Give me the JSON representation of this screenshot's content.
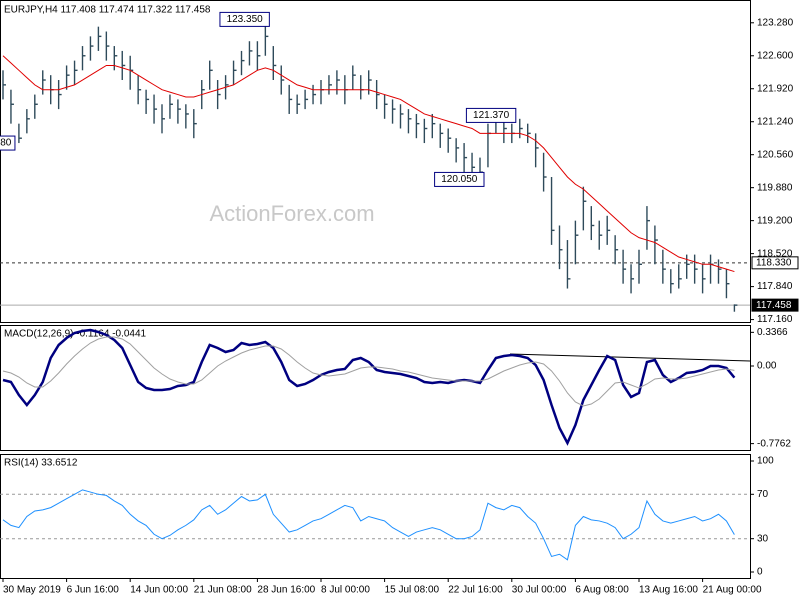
{
  "chart_data": [
    {
      "type": "ohlc",
      "title": "EURJPY,H4  117.408 117.474 117.322 117.458",
      "color": "#2e4a5a",
      "high": [
        122.3,
        121.9,
        121.2,
        121.5,
        121.8,
        122.3,
        122.2,
        122.1,
        122.4,
        122.5,
        122.8,
        123.0,
        123.2,
        123.1,
        122.8,
        122.7,
        122.6,
        122.2,
        121.9,
        121.8,
        121.6,
        121.8,
        121.7,
        121.6,
        121.5,
        122.1,
        122.5,
        122.1,
        122.2,
        122.5,
        122.7,
        122.9,
        122.9,
        123.35,
        122.8,
        122.4,
        122.0,
        121.8,
        121.9,
        122.0,
        122.1,
        122.2,
        122.3,
        122.2,
        122.4,
        122.2,
        122.3,
        122.1,
        121.8,
        121.7,
        121.6,
        121.5,
        121.4,
        121.3,
        121.4,
        121.2,
        121.1,
        120.9,
        120.8,
        120.6,
        120.5,
        121.2,
        121.37,
        121.3,
        121.2,
        121.3,
        121.2,
        121.0,
        120.6,
        120.1,
        119.1,
        118.8,
        119.2,
        119.9,
        119.5,
        119.2,
        119.3,
        118.9,
        118.6,
        118.3,
        118.6,
        119.5,
        119.1,
        118.6,
        118.2,
        118.3,
        118.5,
        118.5,
        118.3,
        118.5,
        118.4,
        118.2,
        117.474
      ],
      "low": [
        121.7,
        121.2,
        120.8,
        121.0,
        121.3,
        121.8,
        121.6,
        121.5,
        121.9,
        122.0,
        122.3,
        122.5,
        122.7,
        122.5,
        122.3,
        122.1,
        121.9,
        121.6,
        121.4,
        121.2,
        121.0,
        121.3,
        121.2,
        121.1,
        120.9,
        121.5,
        121.9,
        121.5,
        121.7,
        122.0,
        122.2,
        122.4,
        122.3,
        122.6,
        122.1,
        121.8,
        121.4,
        121.4,
        121.5,
        121.6,
        121.6,
        121.8,
        121.8,
        121.6,
        121.9,
        121.7,
        121.8,
        121.5,
        121.3,
        121.2,
        121.1,
        121.0,
        120.9,
        120.8,
        120.9,
        120.7,
        120.6,
        120.4,
        120.2,
        120.1,
        120.05,
        120.3,
        121.0,
        120.8,
        120.8,
        120.9,
        120.8,
        120.3,
        119.8,
        118.7,
        118.2,
        117.8,
        118.3,
        119.0,
        118.8,
        118.6,
        118.7,
        118.3,
        117.9,
        117.7,
        117.9,
        118.6,
        118.3,
        117.9,
        117.7,
        117.8,
        118.0,
        117.9,
        117.7,
        117.9,
        117.9,
        117.6,
        117.322
      ],
      "close": [
        122.0,
        121.6,
        120.9,
        121.3,
        121.6,
        122.1,
        121.9,
        121.8,
        122.2,
        122.3,
        122.6,
        122.8,
        123.0,
        122.8,
        122.6,
        122.4,
        122.3,
        121.9,
        121.7,
        121.5,
        121.3,
        121.6,
        121.5,
        121.4,
        121.2,
        121.9,
        122.3,
        121.8,
        122.0,
        122.3,
        122.5,
        122.7,
        122.6,
        123.0,
        122.4,
        122.1,
        121.7,
        121.6,
        121.7,
        121.8,
        121.9,
        122.0,
        122.1,
        121.9,
        122.2,
        121.9,
        122.1,
        121.8,
        121.6,
        121.5,
        121.4,
        121.3,
        121.2,
        121.1,
        121.2,
        121.0,
        120.9,
        120.7,
        120.5,
        120.3,
        120.2,
        121.0,
        121.3,
        121.1,
        121.0,
        121.1,
        121.0,
        120.7,
        120.1,
        119.0,
        118.6,
        118.0,
        118.9,
        119.6,
        119.1,
        118.9,
        119.0,
        118.6,
        118.2,
        118.0,
        118.3,
        119.2,
        118.8,
        118.2,
        117.9,
        118.0,
        118.3,
        118.2,
        118.0,
        118.3,
        118.2,
        117.9,
        117.458
      ],
      "ma": {
        "color": "#e00000",
        "values": [
          122.6,
          122.45,
          122.3,
          122.15,
          122.0,
          121.9,
          121.9,
          121.9,
          121.95,
          122.0,
          122.1,
          122.2,
          122.3,
          122.4,
          122.4,
          122.35,
          122.3,
          122.2,
          122.1,
          122.0,
          121.9,
          121.85,
          121.8,
          121.75,
          121.75,
          121.8,
          121.85,
          121.9,
          121.95,
          122.0,
          122.1,
          122.2,
          122.3,
          122.35,
          122.3,
          122.2,
          122.1,
          122.0,
          121.95,
          121.9,
          121.9,
          121.9,
          121.9,
          121.9,
          121.9,
          121.9,
          121.9,
          121.85,
          121.8,
          121.75,
          121.7,
          121.6,
          121.5,
          121.4,
          121.35,
          121.3,
          121.25,
          121.2,
          121.15,
          121.1,
          121.0,
          121.0,
          121.0,
          121.0,
          121.0,
          121.0,
          120.95,
          120.85,
          120.7,
          120.5,
          120.3,
          120.1,
          119.95,
          119.85,
          119.7,
          119.55,
          119.4,
          119.25,
          119.1,
          118.95,
          118.85,
          118.8,
          118.75,
          118.65,
          118.55,
          118.45,
          118.4,
          118.35,
          118.3,
          118.3,
          118.25,
          118.2,
          118.15
        ]
      },
      "ylim": [
        117.11,
        123.75
      ],
      "yticks": [
        {
          "value": 123.28,
          "label": "123.280"
        },
        {
          "value": 122.6,
          "label": "122.600"
        },
        {
          "value": 121.92,
          "label": "121.920"
        },
        {
          "value": 121.24,
          "label": "121.240"
        },
        {
          "value": 120.56,
          "label": "120.560"
        },
        {
          "value": 119.88,
          "label": "119.880"
        },
        {
          "value": 119.2,
          "label": "119.200"
        },
        {
          "value": 118.52,
          "label": "118.520"
        },
        {
          "value": 117.84,
          "label": "117.840"
        },
        {
          "value": 117.16,
          "label": "117.160"
        }
      ],
      "hlines": [
        {
          "value": 118.33,
          "label": "118.330",
          "style": "dashed"
        },
        {
          "value": 117.458,
          "label": "117.458",
          "style": "solid"
        }
      ],
      "annotations": [
        {
          "label": "123.350",
          "value": 123.35,
          "at": 33
        },
        {
          "label": "121.370",
          "value": 121.37,
          "at": 64
        },
        {
          "label": "120.050",
          "value": 120.05,
          "at": 60
        },
        {
          "label": "80",
          "value": 120.8,
          "at": 1
        }
      ],
      "watermark": "ActionForex.com"
    },
    {
      "type": "line",
      "title": "MACD(12,26,9) -0.1164 -0.0441",
      "series": [
        {
          "color": "#000080",
          "width": 2.5,
          "values": [
            -0.14,
            -0.16,
            -0.29,
            -0.39,
            -0.29,
            -0.16,
            0.08,
            0.21,
            0.28,
            0.33,
            0.35,
            0.36,
            0.34,
            0.31,
            0.26,
            0.18,
            0.01,
            -0.16,
            -0.22,
            -0.24,
            -0.24,
            -0.23,
            -0.2,
            -0.19,
            -0.16,
            0.04,
            0.21,
            0.18,
            0.14,
            0.16,
            0.23,
            0.21,
            0.22,
            0.24,
            0.18,
            0.04,
            -0.14,
            -0.2,
            -0.18,
            -0.14,
            -0.09,
            -0.06,
            -0.04,
            -0.03,
            0.06,
            0.08,
            0.04,
            -0.04,
            -0.06,
            -0.07,
            -0.08,
            -0.1,
            -0.12,
            -0.16,
            -0.17,
            -0.16,
            -0.17,
            -0.15,
            -0.14,
            -0.15,
            -0.17,
            -0.04,
            0.08,
            0.1,
            0.11,
            0.1,
            0.08,
            0.01,
            -0.14,
            -0.39,
            -0.62,
            -0.77,
            -0.59,
            -0.34,
            -0.19,
            -0.04,
            0.1,
            0.06,
            -0.19,
            -0.31,
            -0.27,
            0.04,
            0.06,
            -0.09,
            -0.16,
            -0.12,
            -0.07,
            -0.06,
            -0.04,
            0.0,
            0.0,
            -0.02,
            -0.1164
          ]
        },
        {
          "color": "#a0a0a0",
          "width": 1,
          "values": [
            -0.05,
            -0.07,
            -0.11,
            -0.17,
            -0.21,
            -0.21,
            -0.15,
            -0.07,
            0.02,
            0.1,
            0.17,
            0.23,
            0.27,
            0.29,
            0.29,
            0.27,
            0.22,
            0.14,
            0.06,
            -0.02,
            -0.08,
            -0.13,
            -0.16,
            -0.18,
            -0.18,
            -0.14,
            -0.07,
            0.0,
            0.05,
            0.09,
            0.13,
            0.16,
            0.18,
            0.2,
            0.2,
            0.17,
            0.11,
            0.04,
            -0.02,
            -0.07,
            -0.09,
            -0.1,
            -0.09,
            -0.08,
            -0.05,
            -0.02,
            -0.01,
            -0.01,
            -0.02,
            -0.03,
            -0.05,
            -0.06,
            -0.08,
            -0.1,
            -0.12,
            -0.13,
            -0.14,
            -0.15,
            -0.15,
            -0.15,
            -0.15,
            -0.13,
            -0.09,
            -0.05,
            -0.02,
            0.01,
            0.03,
            0.04,
            0.02,
            -0.05,
            -0.15,
            -0.27,
            -0.36,
            -0.4,
            -0.38,
            -0.33,
            -0.25,
            -0.17,
            -0.16,
            -0.19,
            -0.22,
            -0.18,
            -0.13,
            -0.12,
            -0.13,
            -0.13,
            -0.12,
            -0.1,
            -0.08,
            -0.06,
            -0.04,
            -0.03,
            -0.0441
          ]
        }
      ],
      "ylim": [
        -0.84,
        0.4
      ],
      "yticks": [
        0.3366,
        {
          "value": 0,
          "label": "0.00"
        },
        -0.7762
      ]
    },
    {
      "type": "line",
      "title": "RSI(14) 33.6512",
      "series": [
        {
          "color": "#1e90ff",
          "width": 1,
          "values": [
            47,
            42,
            40,
            50,
            55,
            56,
            58,
            62,
            66,
            70,
            74,
            72,
            70,
            69,
            64,
            60,
            52,
            46,
            42,
            34,
            30,
            33,
            38,
            42,
            47,
            56,
            60,
            52,
            56,
            62,
            68,
            64,
            65,
            70,
            52,
            44,
            36,
            38,
            42,
            46,
            48,
            52,
            56,
            60,
            58,
            46,
            50,
            48,
            46,
            40,
            36,
            32,
            36,
            38,
            40,
            38,
            34,
            30,
            30,
            32,
            38,
            62,
            58,
            56,
            60,
            58,
            50,
            44,
            30,
            14,
            16,
            11,
            42,
            50,
            47,
            46,
            44,
            40,
            30,
            34,
            40,
            64,
            52,
            46,
            44,
            46,
            48,
            50,
            46,
            48,
            52,
            46,
            33.6512
          ]
        }
      ],
      "ylim": [
        -5.4,
        105.4
      ],
      "yticks": [
        100,
        70,
        30,
        0
      ],
      "levels": [
        70,
        30
      ],
      "xticks": [
        {
          "value": 0,
          "label": "30 May 2019"
        },
        {
          "value": 8,
          "label": "6 Jun 16:00"
        },
        {
          "value": 16,
          "label": "14 Jun 00:00"
        },
        {
          "value": 24,
          "label": "21 Jun 08:00"
        },
        {
          "value": 32,
          "label": "28 Jun 16:00"
        },
        {
          "value": 40,
          "label": "8 Jul 00:00"
        },
        {
          "value": 48,
          "label": "15 Jul 08:00"
        },
        {
          "value": 56,
          "label": "22 Jul 16:00"
        },
        {
          "value": 64,
          "label": "30 Jul 00:00"
        },
        {
          "value": 72,
          "label": "6 Aug 08:00"
        },
        {
          "value": 80,
          "label": "13 Aug 16:00"
        },
        {
          "value": 88,
          "label": "21 Aug 00:00"
        }
      ]
    }
  ]
}
